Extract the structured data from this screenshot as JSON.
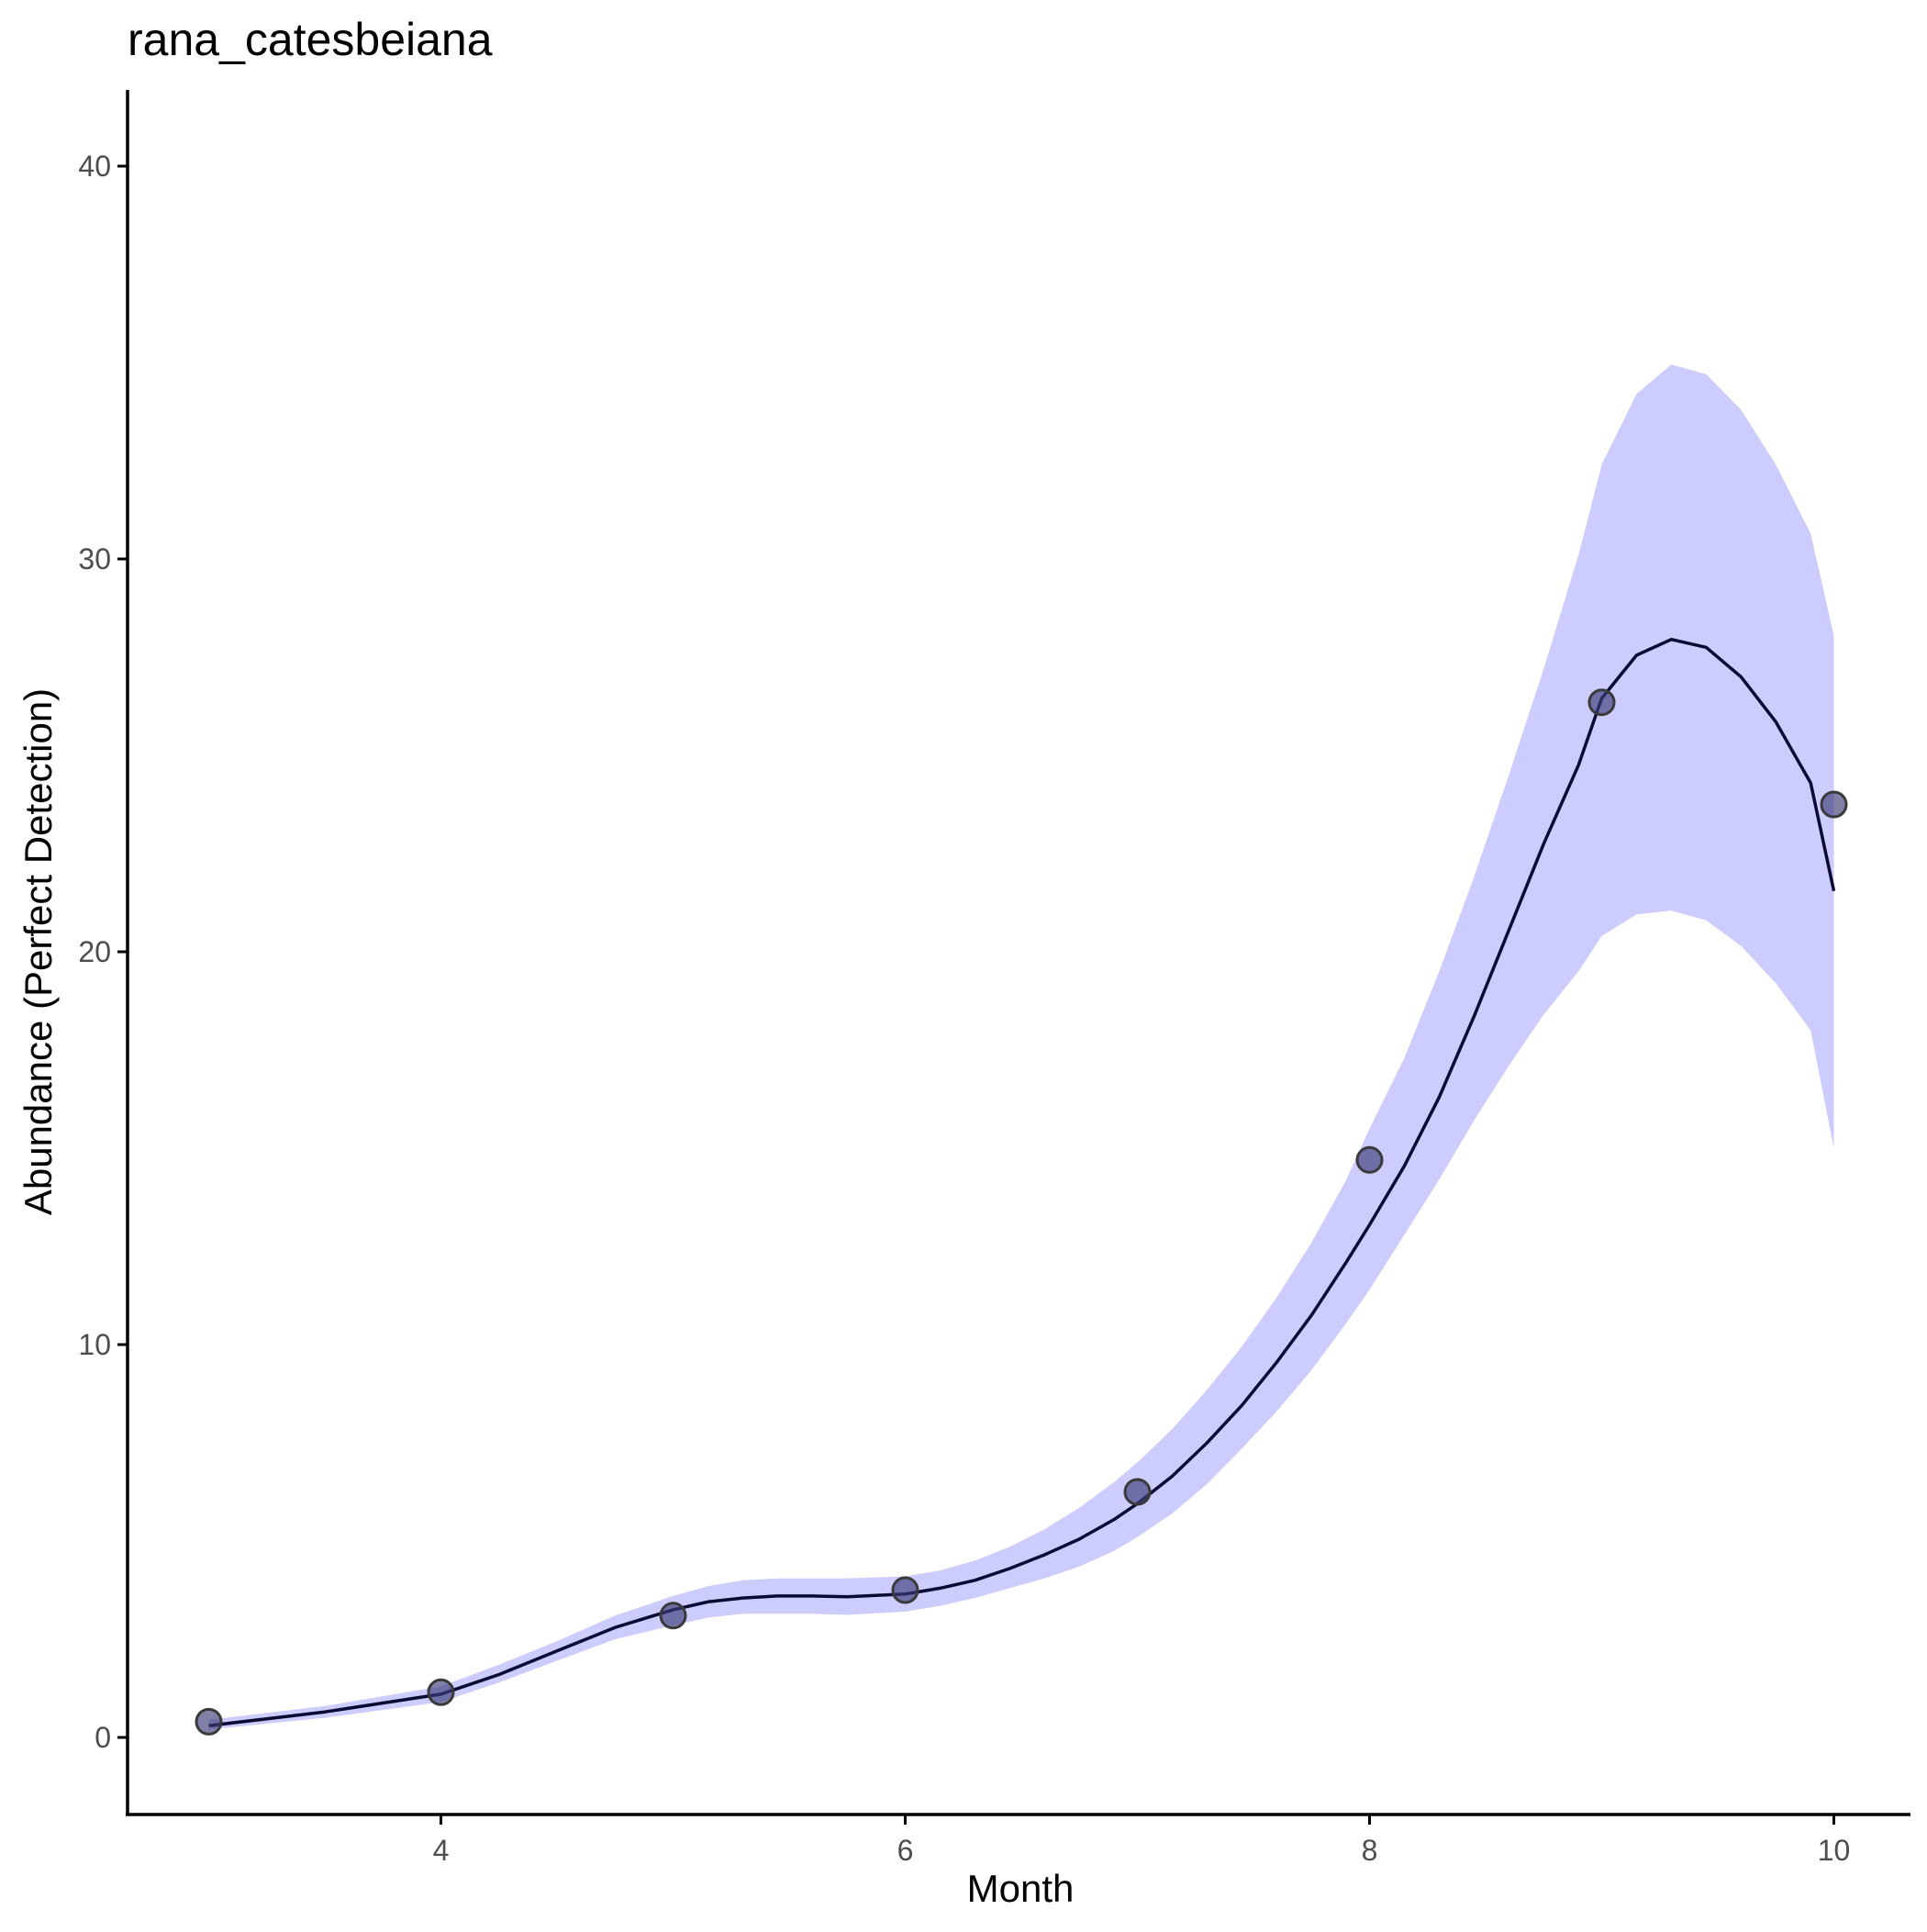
{
  "chart_data": {
    "type": "line",
    "title": "rana_catesbeiana",
    "xlabel": "Month",
    "ylabel": "Abundance (Perfect Detection)",
    "xlim": [
      2.75,
      10.35
    ],
    "ylim": [
      -2,
      42
    ],
    "x_ticks": [
      4,
      6,
      8,
      10
    ],
    "y_ticks": [
      0,
      10,
      20,
      30,
      40
    ],
    "grid": false,
    "legend": "none",
    "colors": {
      "ribbon": "#ccccff",
      "line": "#0a0a33",
      "point_fill": "#3d3d7a",
      "point_stroke": "#3a3a3a"
    },
    "series": [
      {
        "kind": "ribbon",
        "x": [
          3,
          3.5,
          4,
          4.25,
          4.5,
          4.75,
          5,
          5.15,
          5.3,
          5.45,
          5.6,
          5.75,
          6,
          6.15,
          6.3,
          6.45,
          6.6,
          6.75,
          6.9,
          7,
          7.15,
          7.3,
          7.45,
          7.6,
          7.75,
          7.9,
          8,
          8.15,
          8.3,
          8.45,
          8.6,
          8.75,
          8.9,
          9,
          9.15,
          9.3,
          9.45,
          9.6,
          9.75,
          9.9,
          10
        ],
        "lower": [
          0.2,
          0.5,
          0.9,
          1.4,
          1.95,
          2.5,
          2.85,
          3.05,
          3.15,
          3.15,
          3.15,
          3.12,
          3.2,
          3.35,
          3.55,
          3.8,
          4.05,
          4.35,
          4.75,
          5.1,
          5.7,
          6.45,
          7.35,
          8.3,
          9.35,
          10.55,
          11.4,
          12.8,
          14.2,
          15.7,
          17.1,
          18.4,
          19.5,
          20.4,
          20.95,
          21.05,
          20.8,
          20.15,
          19.2,
          18.0,
          15.0
        ],
        "upper": [
          0.45,
          0.8,
          1.3,
          1.85,
          2.45,
          3.1,
          3.6,
          3.85,
          4.0,
          4.05,
          4.05,
          4.05,
          4.1,
          4.25,
          4.5,
          4.85,
          5.3,
          5.85,
          6.5,
          7.0,
          7.85,
          8.85,
          9.95,
          11.2,
          12.6,
          14.2,
          15.5,
          17.3,
          19.5,
          21.9,
          24.5,
          27.2,
          30.1,
          32.4,
          34.2,
          34.95,
          34.7,
          33.8,
          32.4,
          30.65,
          28.05
        ]
      },
      {
        "kind": "line",
        "x": [
          3,
          3.5,
          4,
          4.25,
          4.5,
          4.75,
          5,
          5.15,
          5.3,
          5.45,
          5.6,
          5.75,
          6,
          6.15,
          6.3,
          6.45,
          6.6,
          6.75,
          6.9,
          7,
          7.15,
          7.3,
          7.45,
          7.6,
          7.75,
          7.9,
          8,
          8.15,
          8.3,
          8.45,
          8.6,
          8.75,
          8.9,
          9,
          9.15,
          9.3,
          9.45,
          9.6,
          9.75,
          9.9,
          10
        ],
        "y": [
          0.3,
          0.65,
          1.1,
          1.6,
          2.2,
          2.8,
          3.25,
          3.45,
          3.55,
          3.6,
          3.6,
          3.58,
          3.65,
          3.8,
          4.0,
          4.3,
          4.65,
          5.05,
          5.55,
          5.95,
          6.65,
          7.5,
          8.45,
          9.55,
          10.75,
          12.1,
          13.05,
          14.55,
          16.3,
          18.35,
          20.55,
          22.75,
          24.75,
          26.45,
          27.55,
          27.95,
          27.75,
          27.0,
          25.85,
          24.3,
          21.55
        ]
      },
      {
        "kind": "points",
        "x": [
          3,
          4,
          5,
          6,
          7,
          8,
          9,
          10
        ],
        "y": [
          0.4,
          1.15,
          3.1,
          3.75,
          6.25,
          14.7,
          26.35,
          23.75
        ]
      }
    ]
  }
}
